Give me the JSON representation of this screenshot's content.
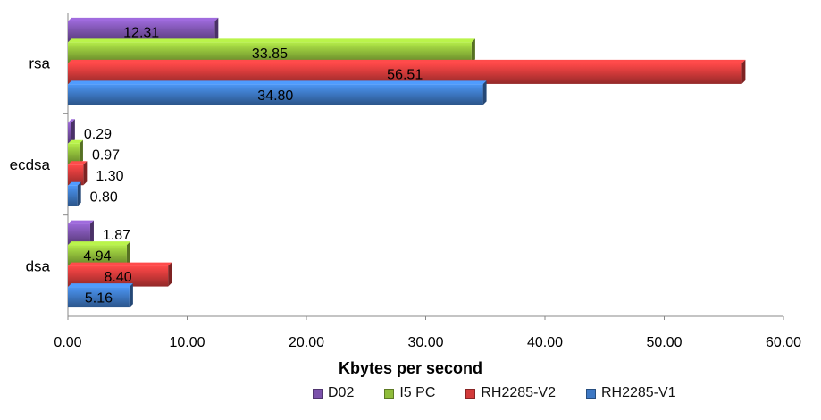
{
  "chart_data": {
    "type": "bar",
    "orientation": "horizontal",
    "categories": [
      "rsa",
      "ecdsa",
      "dsa"
    ],
    "series": [
      {
        "name": "D02",
        "values": [
          12.31,
          0.29,
          1.87
        ],
        "color": "#7b52ab"
      },
      {
        "name": "I5 PC",
        "values": [
          33.85,
          0.97,
          4.94
        ],
        "color": "#8fbc3a"
      },
      {
        "name": "RH2285-V2",
        "values": [
          56.51,
          1.3,
          8.4
        ],
        "color": "#d23a3a"
      },
      {
        "name": "RH2285-V1",
        "values": [
          34.8,
          0.8,
          5.16
        ],
        "color": "#3d78c4"
      }
    ],
    "value_labels": {
      "D02": [
        "12.31",
        "0.29",
        "1.87"
      ],
      "I5 PC": [
        "33.85",
        "0.97",
        "4.94"
      ],
      "RH2285-V2": [
        "56.51",
        "1.30",
        "8.40"
      ],
      "RH2285-V1": [
        "34.80",
        "0.80",
        "5.16"
      ]
    },
    "xlabel": "Kbytes per second",
    "ylabel": "",
    "xlim": [
      0,
      60
    ],
    "xticks": [
      "0.00",
      "10.00",
      "20.00",
      "30.00",
      "40.00",
      "50.00",
      "60.00"
    ],
    "grid": false,
    "legend_position": "bottom"
  }
}
